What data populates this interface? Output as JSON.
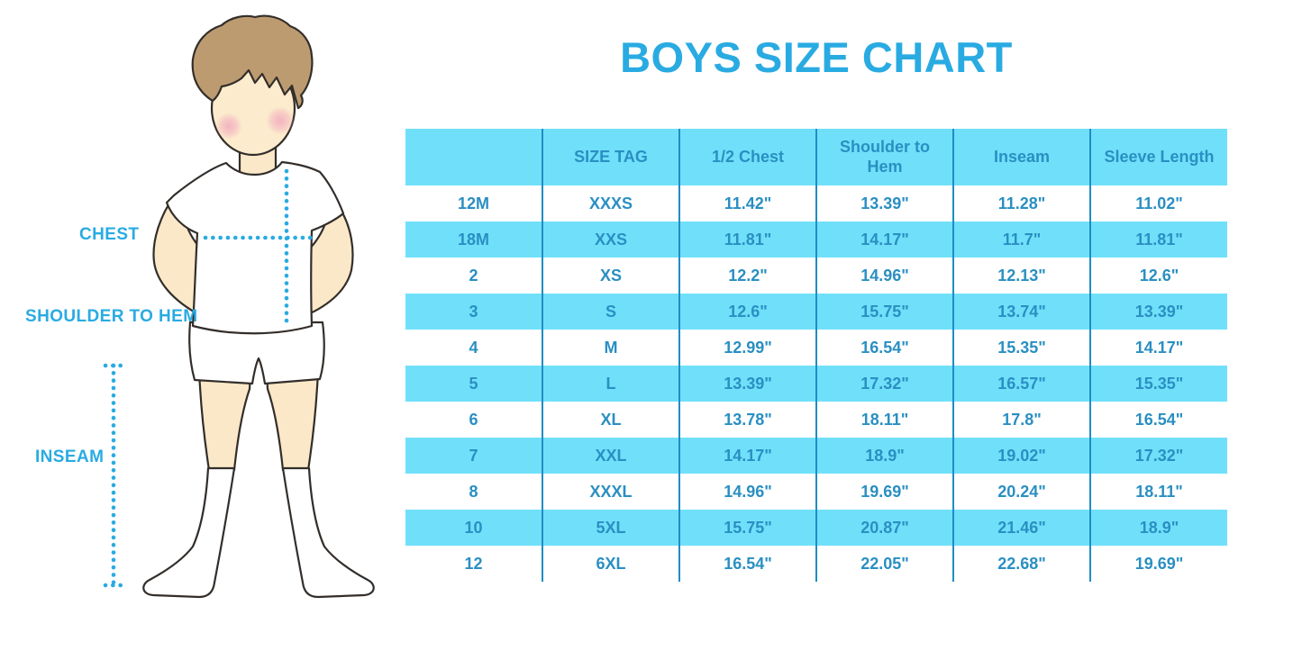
{
  "title": "BOYS SIZE CHART",
  "figure_labels": {
    "chest": "CHEST",
    "shoulder_to_hem": "SHOULDER TO HEM",
    "inseam": "INSEAM"
  },
  "colors": {
    "accent_blue": "#29abe2",
    "stripe_cyan": "#70e0fa",
    "table_text_blue": "#2a8fc2",
    "divider_blue": "#1f8dc4",
    "skin": "#fbe8c8",
    "hair_brown": "#bd9b70",
    "cheek_pink": "#f2a9be",
    "outline": "#332e2a"
  },
  "chart_data": {
    "type": "table",
    "title": "BOYS SIZE CHART",
    "columns": [
      "",
      "SIZE TAG",
      "1/2 Chest",
      "Shoulder to Hem",
      "Inseam",
      "Sleeve Length"
    ],
    "rows": [
      [
        "12M",
        "XXXS",
        "11.42\"",
        "13.39\"",
        "11.28\"",
        "11.02\""
      ],
      [
        "18M",
        "XXS",
        "11.81\"",
        "14.17\"",
        "11.7\"",
        "11.81\""
      ],
      [
        "2",
        "XS",
        "12.2\"",
        "14.96\"",
        "12.13\"",
        "12.6\""
      ],
      [
        "3",
        "S",
        "12.6\"",
        "15.75\"",
        "13.74\"",
        "13.39\""
      ],
      [
        "4",
        "M",
        "12.99\"",
        "16.54\"",
        "15.35\"",
        "14.17\""
      ],
      [
        "5",
        "L",
        "13.39\"",
        "17.32\"",
        "16.57\"",
        "15.35\""
      ],
      [
        "6",
        "XL",
        "13.78\"",
        "18.11\"",
        "17.8\"",
        "16.54\""
      ],
      [
        "7",
        "XXL",
        "14.17\"",
        "18.9\"",
        "19.02\"",
        "17.32\""
      ],
      [
        "8",
        "XXXL",
        "14.96\"",
        "19.69\"",
        "20.24\"",
        "18.11\""
      ],
      [
        "10",
        "5XL",
        "15.75\"",
        "20.87\"",
        "21.46\"",
        "18.9\""
      ],
      [
        "12",
        "6XL",
        "16.54\"",
        "22.05\"",
        "22.68\"",
        "19.69\""
      ]
    ]
  }
}
